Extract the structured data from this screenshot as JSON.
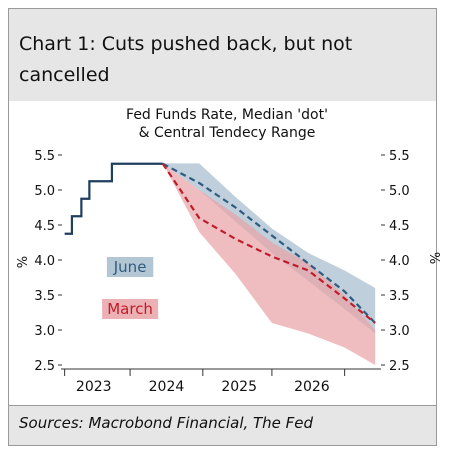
{
  "title": "Chart 1: Cuts pushed back, but not cancelled",
  "source": "Sources: Macrobond Financial, The Fed",
  "chart_data": {
    "type": "line",
    "title": "Fed Funds Rate, Median 'dot' & Central Tendecy Range",
    "title_lines": [
      "Fed Funds Rate, Median 'dot'",
      "& Central Tendecy Range"
    ],
    "ylabel": "%",
    "ylabel_right": "%",
    "ylim": [
      2.5,
      5.5
    ],
    "xlim": [
      2022.6,
      2027.0
    ],
    "yticks": [
      2.5,
      3.0,
      3.5,
      4.0,
      4.5,
      5.0,
      5.5
    ],
    "ytick_labels": [
      "2.5",
      "3.0",
      "3.5",
      "4.0",
      "4.5",
      "5.0",
      "5.5"
    ],
    "xticks": [
      2023,
      2024,
      2025,
      2026
    ],
    "xtick_labels": [
      "2023",
      "2024",
      "2025",
      "2026"
    ],
    "grid": false,
    "colors": {
      "actual": "#1f3f5e",
      "june": "#2f5c82",
      "june_band": "#a6bccd",
      "march": "#c01c2a",
      "march_band": "#e9a3a8"
    },
    "series": [
      {
        "name": "",
        "kind": "step",
        "x": [
          2022.65,
          2022.75,
          2022.88,
          2022.99,
          2023.15,
          2023.3,
          2023.55,
          2024.0
        ],
        "y": [
          4.375,
          4.625,
          4.875,
          5.125,
          5.125,
          5.375,
          5.375,
          5.375
        ]
      },
      {
        "name": "June",
        "kind": "median-dashed",
        "x": [
          2024.0,
          2024.5,
          2025.0,
          2025.5,
          2026.0,
          2026.5,
          2026.92
        ],
        "y": [
          5.375,
          5.1,
          4.75,
          4.35,
          3.95,
          3.55,
          3.1
        ]
      },
      {
        "name": "March",
        "kind": "median-dashed",
        "x": [
          2024.0,
          2024.5,
          2025.0,
          2025.5,
          2026.0,
          2026.5,
          2026.92
        ],
        "y": [
          5.375,
          4.6,
          4.3,
          4.05,
          3.85,
          3.45,
          3.1
        ]
      }
    ],
    "bands": [
      {
        "name": "June",
        "x": [
          2024.0,
          2024.5,
          2025.0,
          2025.5,
          2026.0,
          2026.5,
          2026.92
        ],
        "upper": [
          5.38,
          5.38,
          4.9,
          4.45,
          4.1,
          3.85,
          3.6
        ],
        "lower": [
          5.38,
          5.0,
          4.55,
          4.1,
          3.7,
          3.3,
          2.95
        ]
      },
      {
        "name": "March",
        "x": [
          2024.0,
          2024.5,
          2025.0,
          2025.5,
          2026.0,
          2026.5,
          2026.92
        ],
        "upper": [
          5.38,
          5.0,
          4.65,
          4.25,
          3.95,
          3.5,
          3.0
        ],
        "lower": [
          5.38,
          4.4,
          3.8,
          3.1,
          2.95,
          2.75,
          2.5
        ]
      }
    ],
    "annotations": [
      {
        "text": "June",
        "x": 2023.55,
        "y": 3.9,
        "color": "#2f5c82",
        "background": "#a6bccd"
      },
      {
        "text": "March",
        "x": 2023.55,
        "y": 3.3,
        "color": "#c01c2a",
        "background": "#e9a3a8"
      }
    ]
  }
}
